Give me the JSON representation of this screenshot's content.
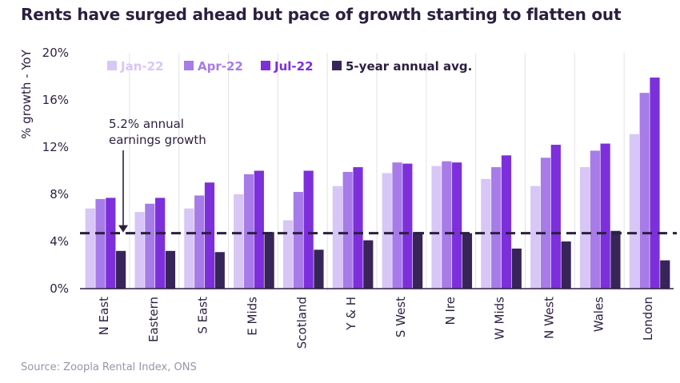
{
  "title": "Rents have surged ahead but pace of growth starting to flatten out",
  "source": "Source: Zoopla Rental Index, ONS",
  "chart_data": {
    "type": "bar",
    "title": "Rents have surged ahead but pace of growth starting to flatten out",
    "ylabel": "% growth - YoY",
    "xlabel": "",
    "ylim": [
      0,
      20
    ],
    "yticks": [
      0,
      4,
      8,
      12,
      16,
      20
    ],
    "ytick_labels": [
      "0%",
      "4%",
      "8%",
      "12%",
      "16%",
      "20%"
    ],
    "grid": true,
    "legend_position": "top",
    "categories": [
      "N East",
      "Eastern",
      "S East",
      "E Mids",
      "Scotland",
      "Y & H",
      "S West",
      "N Ire",
      "W Mids",
      "N West",
      "Wales",
      "London"
    ],
    "series": [
      {
        "name": "Jan-22",
        "color": "#d8c6f6",
        "values": [
          6.8,
          6.5,
          6.8,
          8.0,
          5.8,
          8.7,
          9.8,
          10.4,
          9.3,
          8.7,
          10.3,
          13.1
        ]
      },
      {
        "name": "Apr-22",
        "color": "#a77be8",
        "values": [
          7.6,
          7.2,
          7.9,
          9.7,
          8.2,
          9.9,
          10.7,
          10.8,
          10.3,
          11.1,
          11.7,
          16.6
        ]
      },
      {
        "name": "Jul-22",
        "color": "#7d2fdb",
        "values": [
          7.7,
          7.7,
          9.0,
          10.0,
          10.0,
          10.3,
          10.6,
          10.7,
          11.3,
          12.2,
          12.3,
          17.9
        ]
      },
      {
        "name": "5-year annual avg.",
        "color": "#372458",
        "values": [
          3.2,
          3.2,
          3.1,
          4.8,
          3.3,
          4.1,
          4.8,
          4.7,
          3.4,
          4.0,
          4.9,
          2.4
        ]
      }
    ],
    "reference_line": {
      "value": 4.7,
      "style": "dashed"
    },
    "annotation": {
      "lines": [
        "5.2% annual",
        "earnings growth"
      ]
    }
  }
}
